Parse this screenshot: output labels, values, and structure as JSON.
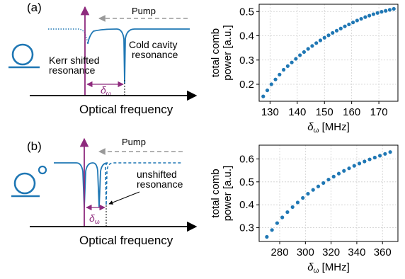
{
  "colors": {
    "resonance": "#1f77b4",
    "pump": "#8e2a7d",
    "arrow_dashed": "#999999",
    "markers": "#1f77b4",
    "grid": "#cfcfcf",
    "axis": "#000000"
  },
  "panel_a": {
    "label": "(a)",
    "pump_label": "Pump",
    "cold_cavity_label_line1": "Cold cavity",
    "cold_cavity_label_line2": "resonance",
    "kerr_label_line1": "Kerr shifted",
    "kerr_label_line2": "resonance",
    "delta_label": "δ",
    "delta_sub": "ω",
    "xaxis_label": "Optical frequency",
    "ring_icon": "ring-resonator-with-bus-waveguide-icon"
  },
  "panel_b": {
    "label": "(b)",
    "pump_label": "Pump",
    "unshifted_label_line1": "unshifted",
    "unshifted_label_line2": "resonance",
    "delta_label": "δ",
    "delta_sub": "ω",
    "xaxis_label": "Optical frequency",
    "ring_icon": "small-ring-resonator-icon"
  },
  "chart_data": [
    {
      "type": "scatter",
      "title": "",
      "xlabel": "δω [MHz]",
      "xlabel_main": "δ",
      "xlabel_sub": "ω",
      "xlabel_unit": " [MHz]",
      "ylabel_line1": "total comb",
      "ylabel_line2": "power [a.u.]",
      "xlim": [
        126,
        177
      ],
      "ylim": [
        0.13,
        0.53
      ],
      "xticks": [
        130,
        140,
        150,
        160,
        170
      ],
      "yticks": [
        0.2,
        0.3,
        0.4,
        0.5
      ],
      "ytick_labels": [
        "0.2",
        "0.3",
        "0.4",
        "0.5"
      ],
      "grid": true,
      "x": [
        127.5,
        129.0,
        130.5,
        132.0,
        133.5,
        135.0,
        136.5,
        138.0,
        139.5,
        141.0,
        142.5,
        144.0,
        145.5,
        147.0,
        148.5,
        150.0,
        151.5,
        153.0,
        154.5,
        156.0,
        157.5,
        159.0,
        160.5,
        162.0,
        163.5,
        165.0,
        166.5,
        168.0,
        169.5,
        171.0,
        172.5,
        174.0,
        175.5
      ],
      "y": [
        0.15,
        0.175,
        0.2,
        0.22,
        0.24,
        0.26,
        0.275,
        0.29,
        0.305,
        0.32,
        0.333,
        0.346,
        0.358,
        0.37,
        0.381,
        0.392,
        0.402,
        0.412,
        0.421,
        0.43,
        0.439,
        0.447,
        0.455,
        0.463,
        0.47,
        0.477,
        0.483,
        0.489,
        0.494,
        0.499,
        0.503,
        0.507,
        0.511
      ]
    },
    {
      "type": "scatter",
      "title": "",
      "xlabel": "δω [MHz]",
      "xlabel_main": "δ",
      "xlabel_sub": "ω",
      "xlabel_unit": " [MHz]",
      "ylabel_line1": "total comb",
      "ylabel_line2": "power [a.u.]",
      "xlim": [
        264,
        372
      ],
      "ylim": [
        0.24,
        0.66
      ],
      "xticks": [
        280,
        300,
        320,
        340,
        360
      ],
      "yticks": [
        0.3,
        0.4,
        0.5,
        0.6
      ],
      "ytick_labels": [
        "0.3",
        "0.4",
        "0.5",
        "0.6"
      ],
      "grid": true,
      "x": [
        270,
        274,
        278,
        282,
        286,
        290,
        294,
        298,
        302,
        306,
        310,
        314,
        318,
        322,
        326,
        330,
        334,
        338,
        342,
        346,
        350,
        354,
        358,
        362,
        366
      ],
      "y": [
        0.26,
        0.29,
        0.32,
        0.345,
        0.368,
        0.39,
        0.41,
        0.43,
        0.448,
        0.465,
        0.48,
        0.495,
        0.51,
        0.523,
        0.536,
        0.548,
        0.559,
        0.57,
        0.58,
        0.589,
        0.598,
        0.606,
        0.614,
        0.622,
        0.63
      ]
    }
  ]
}
